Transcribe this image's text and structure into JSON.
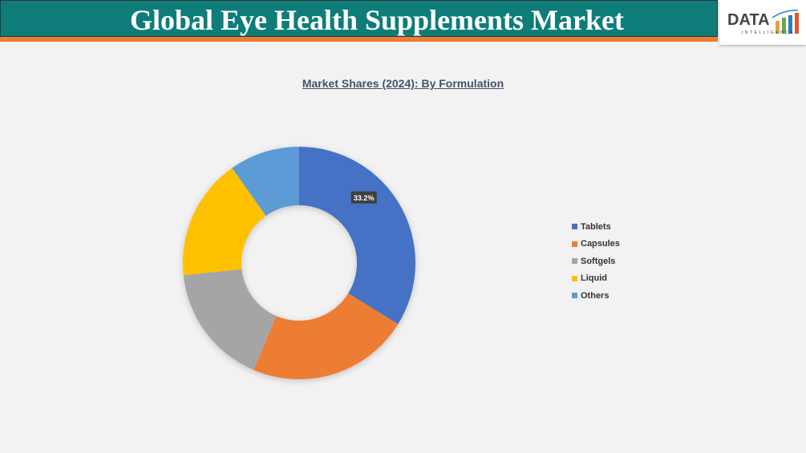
{
  "header": {
    "title": "Global Eye Health Supplements Market",
    "logo_text": "DATA",
    "logo_subtext": "INTELLIGENCE"
  },
  "chart_data": {
    "type": "pie",
    "subtype": "donut",
    "title": "Market Shares (2024): By Formulation",
    "categories": [
      "Tablets",
      "Capsules",
      "Softgels",
      "Liquid",
      "Others"
    ],
    "values": [
      33.2,
      22.2,
      16.6,
      16.6,
      9.6
    ],
    "colors": [
      "#4472c4",
      "#ed7d31",
      "#a5a5a5",
      "#ffc000",
      "#5b9bd5"
    ],
    "data_labels": [
      "33.2%",
      "",
      "",
      "",
      ""
    ],
    "legend_position": "right"
  }
}
